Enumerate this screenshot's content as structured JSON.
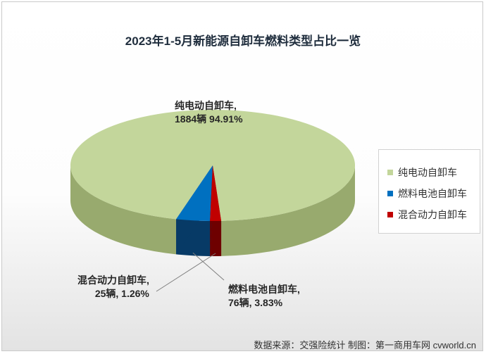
{
  "chart_data": {
    "type": "pie",
    "title": "2023年1-5月新能源自卸车燃料类型占比一览",
    "slices": [
      {
        "name": "纯电动自卸车",
        "value": 1884,
        "percent": 94.91,
        "label_name": "纯电动自卸车,",
        "label_value": "1884辆 94.91%",
        "color": "#c3d69b",
        "side_color": "#98aa6e"
      },
      {
        "name": "燃料电池自卸车",
        "value": 76,
        "percent": 3.83,
        "label_name": "燃料电池自卸车,",
        "label_value": "76辆, 3.83%",
        "color": "#0070c0",
        "side_color": "#073a66"
      },
      {
        "name": "混合动力自卸车",
        "value": 25,
        "percent": 1.26,
        "label_name": "混合动力自卸车,",
        "label_value": "25辆, 1.26%",
        "color": "#c00000",
        "side_color": "#6e0000"
      }
    ],
    "legend_position": "right"
  },
  "source_note": "数据来源：交强险统计  制图：第一商用车网 cvworld.cn"
}
